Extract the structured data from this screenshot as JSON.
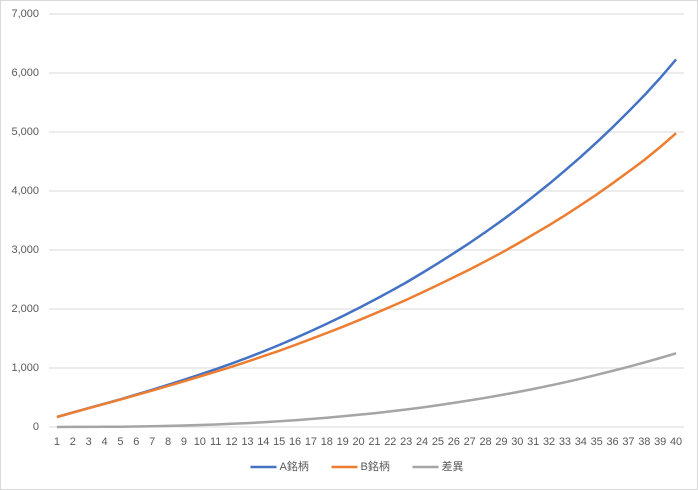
{
  "chart_data": {
    "type": "line",
    "categories": [
      1,
      2,
      3,
      4,
      5,
      6,
      7,
      8,
      9,
      10,
      11,
      12,
      13,
      14,
      15,
      16,
      17,
      18,
      19,
      20,
      21,
      22,
      23,
      24,
      25,
      26,
      27,
      28,
      29,
      30,
      31,
      32,
      33,
      34,
      35,
      36,
      37,
      38,
      39,
      40
    ],
    "series": [
      {
        "name": "A銘柄",
        "color": "#4472c4",
        "values": [
          170,
          245,
          320,
          395,
          470,
          550,
          630,
          715,
          800,
          890,
          980,
          1075,
          1175,
          1280,
          1390,
          1505,
          1625,
          1750,
          1880,
          2015,
          2155,
          2300,
          2450,
          2610,
          2775,
          2945,
          3120,
          3305,
          3495,
          3695,
          3905,
          4120,
          4345,
          4580,
          4825,
          5080,
          5345,
          5620,
          5915,
          6230
        ]
      },
      {
        "name": "B銘柄",
        "color": "#ed7d31",
        "values": [
          170,
          244,
          318,
          392,
          465,
          541,
          617,
          696,
          774,
          856,
          937,
          1021,
          1109,
          1200,
          1292,
          1390,
          1490,
          1593,
          1699,
          1809,
          1921,
          2036,
          2154,
          2279,
          2407,
          2537,
          2670,
          2810,
          2953,
          3103,
          3261,
          3420,
          3587,
          3761,
          3941,
          4130,
          4325,
          4526,
          4745,
          4980
        ]
      },
      {
        "name": "差異",
        "color": "#a5a5a5",
        "values": [
          0,
          1,
          2,
          3,
          5,
          9,
          13,
          19,
          26,
          34,
          43,
          54,
          66,
          80,
          98,
          115,
          135,
          157,
          181,
          206,
          234,
          264,
          296,
          331,
          368,
          408,
          450,
          495,
          542,
          592,
          644,
          700,
          758,
          819,
          884,
          950,
          1020,
          1094,
          1170,
          1250
        ]
      }
    ],
    "ylim": [
      0,
      7000
    ],
    "yticks": [
      0,
      {
        "value": 1000,
        "label": "1,000"
      },
      {
        "value": 2000,
        "label": "2,000"
      },
      {
        "value": 3000,
        "label": "3,000"
      },
      {
        "value": 4000,
        "label": "4,000"
      },
      {
        "value": 5000,
        "label": "5,000"
      },
      {
        "value": 6000,
        "label": "6,000"
      },
      {
        "value": 7000,
        "label": "7,000"
      }
    ],
    "grid": true,
    "legend": "bottom"
  }
}
